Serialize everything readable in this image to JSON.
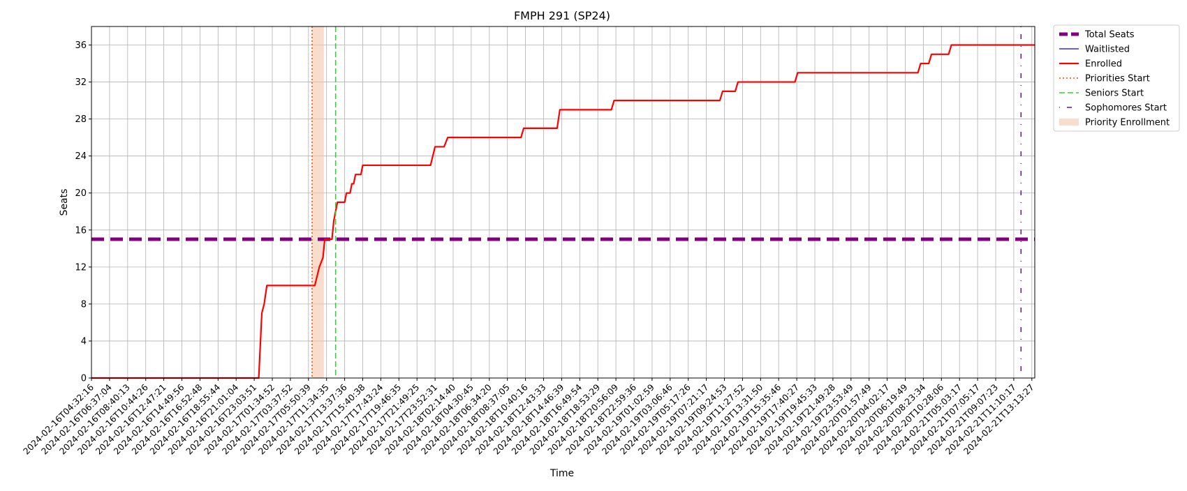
{
  "chart_data": {
    "type": "line",
    "title": "FMPH 291 (SP24)",
    "xlabel": "Time",
    "ylabel": "Seats",
    "ylim": [
      0,
      38
    ],
    "yticks": [
      0,
      4,
      8,
      12,
      16,
      20,
      24,
      28,
      32,
      36
    ],
    "grid": true,
    "legend_position": "outside-top-right",
    "x_tick_labels": [
      "2024-02-16T04:32:16",
      "2024-02-16T06:37:04",
      "2024-02-16T08:40:13",
      "2024-02-16T10:44:26",
      "2024-02-16T12:47:21",
      "2024-02-16T14:49:56",
      "2024-02-16T16:52:48",
      "2024-02-16T18:55:44",
      "2024-02-16T21:01:04",
      "2024-02-16T23:03:51",
      "2024-02-17T01:34:52",
      "2024-02-17T03:37:52",
      "2024-02-17T05:50:39",
      "2024-02-17T11:34:35",
      "2024-02-17T13:37:36",
      "2024-02-17T15:40:38",
      "2024-02-17T17:43:24",
      "2024-02-17T19:46:35",
      "2024-02-17T21:49:25",
      "2024-02-17T23:52:31",
      "2024-02-18T02:14:40",
      "2024-02-18T04:30:45",
      "2024-02-18T06:34:20",
      "2024-02-18T08:37:05",
      "2024-02-18T10:40:16",
      "2024-02-18T12:43:33",
      "2024-02-18T14:46:39",
      "2024-02-18T16:49:54",
      "2024-02-18T18:53:29",
      "2024-02-18T20:56:09",
      "2024-02-18T22:59:36",
      "2024-02-19T01:02:59",
      "2024-02-19T03:06:46",
      "2024-02-19T05:17:26",
      "2024-02-19T07:21:17",
      "2024-02-19T09:24:53",
      "2024-02-19T11:27:52",
      "2024-02-19T13:31:50",
      "2024-02-19T15:35:46",
      "2024-02-19T17:40:27",
      "2024-02-19T19:45:33",
      "2024-02-19T21:49:28",
      "2024-02-19T23:53:49",
      "2024-02-20T01:57:49",
      "2024-02-20T04:02:17",
      "2024-02-20T06:19:49",
      "2024-02-20T08:23:34",
      "2024-02-20T10:28:06",
      "2024-02-21T05:03:17",
      "2024-02-21T07:05:17",
      "2024-02-21T09:07:23",
      "2024-02-21T11:10:17",
      "2024-02-21T13:13:27"
    ],
    "series": [
      {
        "name": "Total Seats",
        "color": "#800080",
        "style": "dashed-thick",
        "points": [
          [
            0,
            15
          ],
          [
            52.2,
            15
          ]
        ]
      },
      {
        "name": "Waitlisted",
        "color": "#0000ff",
        "style": "solid-thin",
        "points": []
      },
      {
        "name": "Enrolled",
        "color": "#ff0000",
        "style": "solid",
        "points": [
          [
            0,
            0
          ],
          [
            9.25,
            0
          ],
          [
            9.42,
            7
          ],
          [
            9.55,
            8
          ],
          [
            9.7,
            10
          ],
          [
            12.35,
            10
          ],
          [
            12.6,
            12
          ],
          [
            12.8,
            13
          ],
          [
            12.9,
            15
          ],
          [
            13.3,
            15
          ],
          [
            13.4,
            17
          ],
          [
            13.6,
            19
          ],
          [
            14.0,
            19
          ],
          [
            14.1,
            20
          ],
          [
            14.3,
            20
          ],
          [
            14.4,
            21
          ],
          [
            14.5,
            21
          ],
          [
            14.6,
            22
          ],
          [
            14.9,
            22
          ],
          [
            15.0,
            23
          ],
          [
            18.75,
            23
          ],
          [
            19.0,
            25
          ],
          [
            19.5,
            25
          ],
          [
            19.7,
            26
          ],
          [
            23.75,
            26
          ],
          [
            23.9,
            27
          ],
          [
            25.75,
            27
          ],
          [
            25.9,
            29
          ],
          [
            28.75,
            29
          ],
          [
            28.9,
            30
          ],
          [
            34.75,
            30
          ],
          [
            34.9,
            31
          ],
          [
            35.6,
            31
          ],
          [
            35.75,
            32
          ],
          [
            38.9,
            32
          ],
          [
            39.05,
            33
          ],
          [
            45.7,
            33
          ],
          [
            45.85,
            34
          ],
          [
            46.3,
            34
          ],
          [
            46.45,
            35
          ],
          [
            47.4,
            35
          ],
          [
            47.55,
            36
          ],
          [
            52.2,
            36
          ]
        ]
      }
    ],
    "markers": [
      {
        "name": "Priorities Start",
        "x": 12.2,
        "color": "#ff4500",
        "style": "dotted"
      },
      {
        "name": "Seniors Start",
        "x": 13.5,
        "color": "#32cd32",
        "style": "dashed"
      },
      {
        "name": "Sophomores Start",
        "x": 51.4,
        "color": "#6a0dad",
        "style": "dashdot"
      }
    ],
    "spans": [
      {
        "name": "Priority Enrollment",
        "x0": 12.2,
        "x1": 12.85,
        "color": "#f4c4aa"
      }
    ],
    "legend": [
      {
        "label": "Total Seats",
        "kind": "line",
        "color": "#800080",
        "style": "dashed-thick"
      },
      {
        "label": "Waitlisted",
        "kind": "line",
        "color": "#0000ff",
        "style": "solid-thin"
      },
      {
        "label": "Enrolled",
        "kind": "line",
        "color": "#ff0000",
        "style": "solid"
      },
      {
        "label": "Priorities Start",
        "kind": "line",
        "color": "#ff4500",
        "style": "dotted"
      },
      {
        "label": "Seniors Start",
        "kind": "line",
        "color": "#32cd32",
        "style": "dashed"
      },
      {
        "label": "Sophomores Start",
        "kind": "line",
        "color": "#6a0dad",
        "style": "dashdot"
      },
      {
        "label": "Priority Enrollment",
        "kind": "patch",
        "color": "#f4c4aa"
      }
    ]
  }
}
